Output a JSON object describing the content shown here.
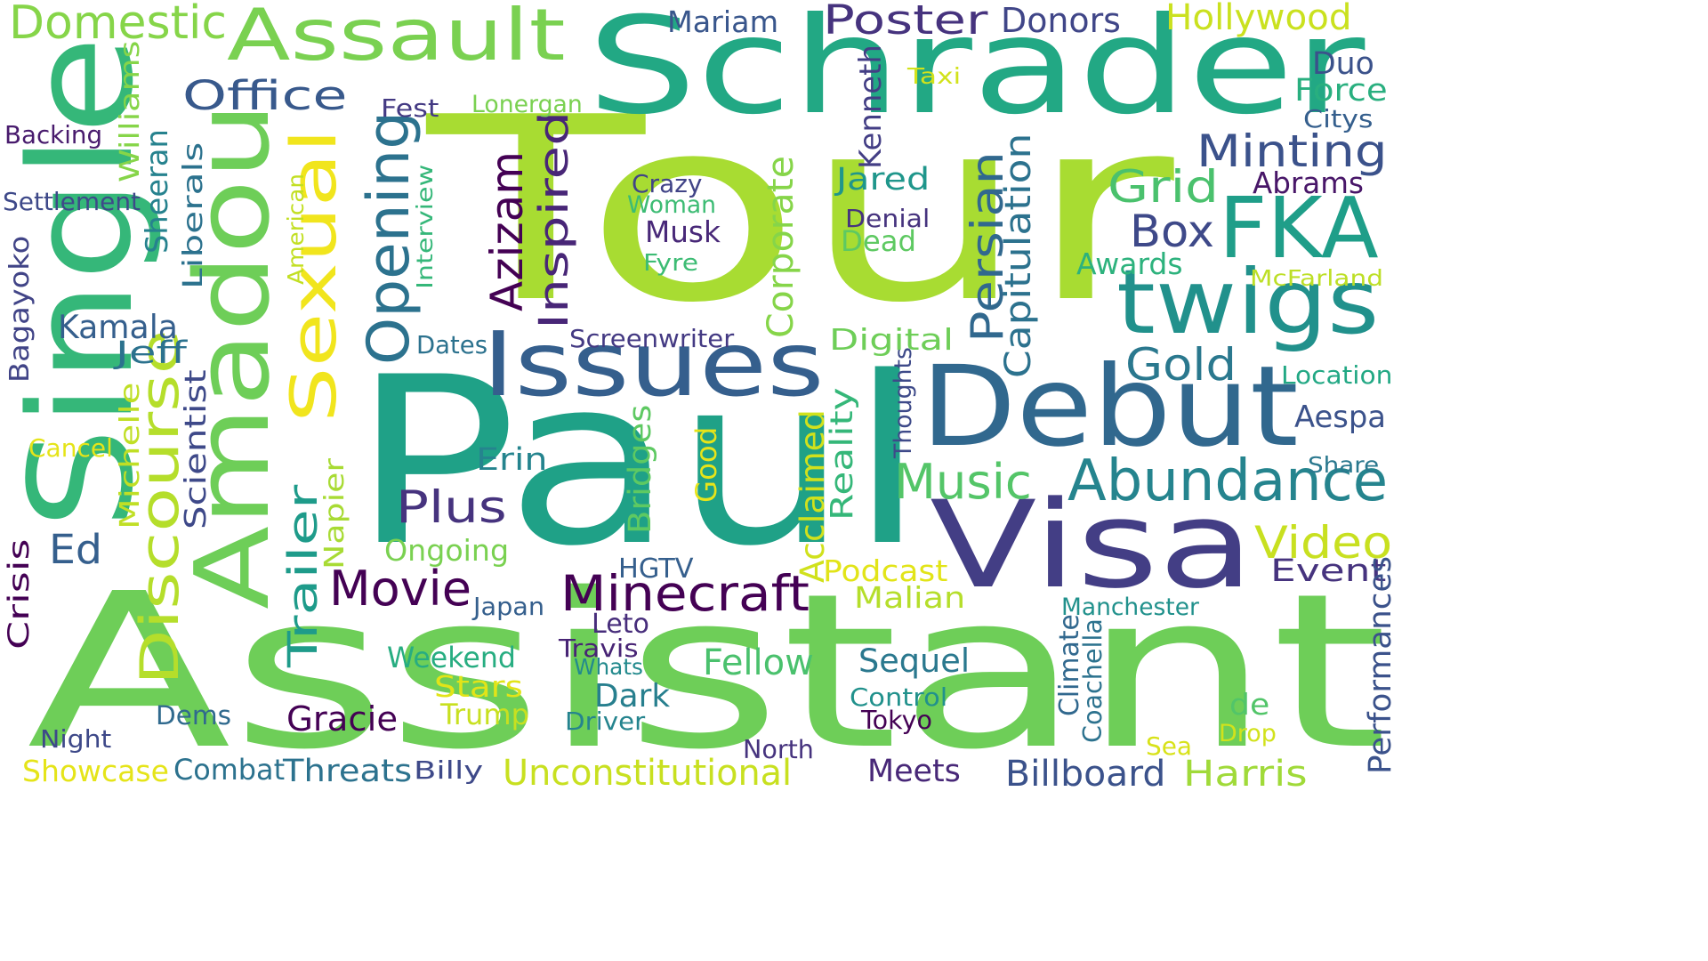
{
  "palette": {
    "background": "#ffffff",
    "dark_purple": "#440154",
    "indigo": "#46337e",
    "blue": "#365c8d",
    "teal_blue": "#277f8e",
    "teal": "#1fa187",
    "green": "#4ac16d",
    "lime": "#a0da39",
    "yellow": "#fde725"
  },
  "words": [
    {
      "text": "Tour",
      "color": "#a8dc32"
    },
    {
      "text": "Paul",
      "color": "#1fa187"
    },
    {
      "text": "Assistant",
      "color": "#6ece58"
    },
    {
      "text": "Schrader",
      "color": "#22a884"
    },
    {
      "text": "Single",
      "color": "#35b779"
    },
    {
      "text": "Amadou",
      "color": "#6ece58"
    },
    {
      "text": "Debut",
      "color": "#31688e"
    },
    {
      "text": "Visa",
      "color": "#433e85"
    },
    {
      "text": "Issues",
      "color": "#355f8d"
    },
    {
      "text": "Assault",
      "color": "#7ad151"
    },
    {
      "text": "FKA",
      "color": "#1f9e89"
    },
    {
      "text": "twigs",
      "color": "#21918c"
    },
    {
      "text": "Sexual",
      "color": "#f1e51d"
    },
    {
      "text": "Abundance",
      "color": "#25848e"
    },
    {
      "text": "Discourse",
      "color": "#b5de2b"
    },
    {
      "text": "Domestic",
      "color": "#86d549"
    },
    {
      "text": "Opening",
      "color": "#2c728e"
    },
    {
      "text": "Azizam",
      "color": "#440154"
    },
    {
      "text": "Inspired",
      "color": "#482677"
    },
    {
      "text": "Minecraft",
      "color": "#440154"
    },
    {
      "text": "Persian",
      "color": "#31688e"
    },
    {
      "text": "Office",
      "color": "#38598c"
    },
    {
      "text": "Poster",
      "color": "#46337e"
    },
    {
      "text": "Sheeran",
      "color": "#26828e"
    },
    {
      "text": "Minting",
      "color": "#3b528b"
    },
    {
      "text": "Trailer",
      "color": "#1e9b8a"
    },
    {
      "text": "Music",
      "color": "#54c568"
    },
    {
      "text": "Grid",
      "color": "#4ac16d"
    },
    {
      "text": "Box",
      "color": "#3e4989"
    },
    {
      "text": "Gold",
      "color": "#2a788e"
    },
    {
      "text": "Movie",
      "color": "#440154"
    },
    {
      "text": "Plus",
      "color": "#46337e"
    },
    {
      "text": "Video",
      "color": "#c8e020"
    },
    {
      "text": "Corporate",
      "color": "#86d549"
    },
    {
      "text": "Capitulation",
      "color": "#2c728e"
    },
    {
      "text": "Kamala",
      "color": "#355f8d"
    },
    {
      "text": "Ed",
      "color": "#355f8d"
    },
    {
      "text": "Sequel",
      "color": "#2a788e"
    },
    {
      "text": "Fellow",
      "color": "#4ac16d"
    },
    {
      "text": "Weekend",
      "color": "#27ad81"
    },
    {
      "text": "Gracie",
      "color": "#440154"
    },
    {
      "text": "Showcase",
      "color": "#e5e419"
    },
    {
      "text": "Combat",
      "color": "#2c728e"
    },
    {
      "text": "Threats",
      "color": "#2c728e"
    },
    {
      "text": "Unconstitutional",
      "color": "#c8e020"
    },
    {
      "text": "Meets",
      "color": "#482878"
    },
    {
      "text": "Billboard",
      "color": "#3b528b"
    },
    {
      "text": "Harris",
      "color": "#a0da39"
    },
    {
      "text": "Hollywood",
      "color": "#cae11f"
    },
    {
      "text": "Donors",
      "color": "#404688"
    },
    {
      "text": "Mariam",
      "color": "#39568c"
    },
    {
      "text": "Duo",
      "color": "#3b528b"
    },
    {
      "text": "Force",
      "color": "#29af7f"
    },
    {
      "text": "Citys",
      "color": "#355f8d"
    },
    {
      "text": "Abrams",
      "color": "#481668"
    },
    {
      "text": "Awards",
      "color": "#2db27d"
    },
    {
      "text": "McFarland",
      "color": "#bddf26"
    },
    {
      "text": "Location",
      "color": "#22a884"
    },
    {
      "text": "Aespa",
      "color": "#3b528b"
    },
    {
      "text": "Share",
      "color": "#2a788e"
    },
    {
      "text": "Event",
      "color": "#46337e"
    },
    {
      "text": "Performances",
      "color": "#3b528b"
    },
    {
      "text": "Drop",
      "color": "#d2e21b"
    },
    {
      "text": "Sea",
      "color": "#d8e219"
    },
    {
      "text": "de",
      "color": "#52c569"
    },
    {
      "text": "Coachella",
      "color": "#2c728e"
    },
    {
      "text": "Climate",
      "color": "#31688e"
    },
    {
      "text": "Manchester",
      "color": "#21918c"
    },
    {
      "text": "Tokyo",
      "color": "#440154"
    },
    {
      "text": "Control",
      "color": "#21918c"
    },
    {
      "text": "North",
      "color": "#46337e"
    },
    {
      "text": "Malian",
      "color": "#b5de2b"
    },
    {
      "text": "Podcast",
      "color": "#e2e418"
    },
    {
      "text": "Acclaimed",
      "color": "#d0e11c"
    },
    {
      "text": "Reality",
      "color": "#35b779"
    },
    {
      "text": "Thoughts",
      "color": "#3e4a89"
    },
    {
      "text": "Digital",
      "color": "#6ece58"
    },
    {
      "text": "Dead",
      "color": "#5ec962"
    },
    {
      "text": "Denial",
      "color": "#46337e"
    },
    {
      "text": "Jared",
      "color": "#1f968b"
    },
    {
      "text": "Kenneth",
      "color": "#433e85"
    },
    {
      "text": "Taxi",
      "color": "#d2e21b"
    },
    {
      "text": "Fest",
      "color": "#443a83"
    },
    {
      "text": "Lonergan",
      "color": "#7ad151"
    },
    {
      "text": "Crazy",
      "color": "#414487"
    },
    {
      "text": "Woman",
      "color": "#3dbc74"
    },
    {
      "text": "Musk",
      "color": "#482878"
    },
    {
      "text": "Fyre",
      "color": "#3dbc74"
    },
    {
      "text": "Screenwriter",
      "color": "#443a83"
    },
    {
      "text": "Dates",
      "color": "#2c728e"
    },
    {
      "text": "Interview",
      "color": "#35b779"
    },
    {
      "text": "American",
      "color": "#c2df23"
    },
    {
      "text": "Good",
      "color": "#e7e419"
    },
    {
      "text": "Bridges",
      "color": "#5ec962"
    },
    {
      "text": "Erin",
      "color": "#25848e"
    },
    {
      "text": "Ongoing",
      "color": "#7ad151"
    },
    {
      "text": "HGTV",
      "color": "#355f8d"
    },
    {
      "text": "Japan",
      "color": "#355f8d"
    },
    {
      "text": "Leto",
      "color": "#472d7b"
    },
    {
      "text": "Travis",
      "color": "#482475"
    },
    {
      "text": "Whats",
      "color": "#238a8d"
    },
    {
      "text": "Dark",
      "color": "#277f8e"
    },
    {
      "text": "Driver",
      "color": "#25848e"
    },
    {
      "text": "Stars",
      "color": "#e2e418"
    },
    {
      "text": "Trump",
      "color": "#c8e020"
    },
    {
      "text": "Billy",
      "color": "#3e4989"
    },
    {
      "text": "Dems",
      "color": "#306a8e"
    },
    {
      "text": "Night",
      "color": "#3e4989"
    },
    {
      "text": "Crisis",
      "color": "#440154"
    },
    {
      "text": "Cancel",
      "color": "#e5e419"
    },
    {
      "text": "Michelle",
      "color": "#c0df25"
    },
    {
      "text": "Scientist",
      "color": "#3e4989"
    },
    {
      "text": "Napier",
      "color": "#a8db34"
    },
    {
      "text": "Jeff",
      "color": "#2c728e"
    },
    {
      "text": "Bagayoko",
      "color": "#414487"
    },
    {
      "text": "Liberals",
      "color": "#2c728e"
    },
    {
      "text": "Williams",
      "color": "#86d549"
    },
    {
      "text": "Settlement",
      "color": "#3e4989"
    },
    {
      "text": "Backing",
      "color": "#481b6d"
    }
  ]
}
